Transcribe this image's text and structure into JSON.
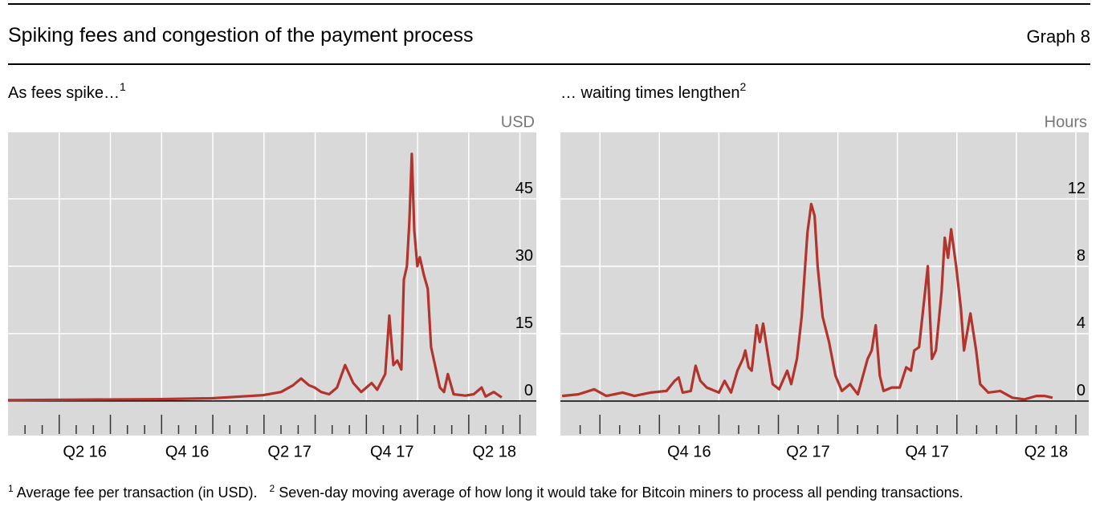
{
  "header": {
    "title": "Spiking fees and congestion of the payment process",
    "graph": "Graph 8"
  },
  "chart_data": [
    {
      "type": "line",
      "title": "As fees spike…",
      "title_note": "1",
      "ylabel": "USD",
      "color": "#b2342c",
      "xlim": [
        2016.0,
        2018.58
      ],
      "ylim": [
        -7.7,
        59.8
      ],
      "yticks": [
        0,
        15,
        30,
        45
      ],
      "grid": true,
      "xticks": [
        {
          "value": 2016.375,
          "label": "Q2 16"
        },
        {
          "value": 2016.875,
          "label": "Q4 16"
        },
        {
          "value": 2017.375,
          "label": "Q2 17"
        },
        {
          "value": 2017.875,
          "label": "Q4 17"
        },
        {
          "value": 2018.375,
          "label": "Q2 18"
        }
      ],
      "xgrid": [
        2016.25,
        2016.5,
        2016.75,
        2017.0,
        2017.25,
        2017.5,
        2017.75,
        2018.0,
        2018.25,
        2018.5
      ],
      "xminor": [
        2016.083,
        2016.167,
        2016.333,
        2016.417,
        2016.583,
        2016.667,
        2016.833,
        2016.917,
        2017.083,
        2017.167,
        2017.333,
        2017.417,
        2017.583,
        2017.667,
        2017.833,
        2017.917,
        2018.083,
        2018.167,
        2018.333,
        2018.417
      ],
      "x": [
        2016.0,
        2016.353,
        2016.745,
        2016.996,
        2017.137,
        2017.247,
        2017.333,
        2017.392,
        2017.431,
        2017.47,
        2017.497,
        2017.529,
        2017.568,
        2017.607,
        2017.646,
        2017.686,
        2017.725,
        2017.776,
        2017.803,
        2017.842,
        2017.862,
        2017.882,
        2017.901,
        2017.921,
        2017.933,
        2017.948,
        2017.96,
        2017.972,
        2017.984,
        2017.999,
        2018.011,
        2018.031,
        2018.05,
        2018.066,
        2018.085,
        2018.109,
        2018.129,
        2018.148,
        2018.176,
        2018.234,
        2018.274,
        2018.313,
        2018.332,
        2018.372,
        2018.411
      ],
      "values": [
        0.2,
        0.3,
        0.4,
        0.6,
        1,
        1.3,
        2,
        3.5,
        5,
        3.5,
        3,
        2,
        1.5,
        3,
        8,
        4,
        2,
        4,
        2.5,
        6,
        19,
        8,
        9,
        7,
        27,
        30,
        40,
        55,
        38,
        30,
        32,
        28,
        25,
        12,
        8,
        3,
        2,
        6,
        1.5,
        1.2,
        1.5,
        3,
        1,
        2,
        0.8
      ]
    },
    {
      "type": "line",
      "title": "… waiting times lengthen",
      "title_note": "2",
      "ylabel": "Hours",
      "color": "#b2342c",
      "xlim": [
        2016.334,
        2018.554
      ],
      "ylim": [
        -2.05,
        15.95
      ],
      "yticks": [
        0,
        4,
        8,
        12
      ],
      "grid": true,
      "xticks": [
        {
          "value": 2016.875,
          "label": "Q4 16"
        },
        {
          "value": 2017.375,
          "label": "Q2 17"
        },
        {
          "value": 2017.875,
          "label": "Q4 17"
        },
        {
          "value": 2018.375,
          "label": "Q2 18"
        }
      ],
      "xgrid": [
        2016.5,
        2016.75,
        2017.0,
        2017.25,
        2017.5,
        2017.75,
        2018.0,
        2018.25,
        2018.5
      ],
      "xminor": [
        2016.417,
        2016.583,
        2016.667,
        2016.833,
        2016.917,
        2017.083,
        2017.167,
        2017.333,
        2017.417,
        2017.583,
        2017.667,
        2017.833,
        2017.917,
        2018.083,
        2018.167,
        2018.333,
        2018.417
      ],
      "x": [
        2016.341,
        2016.409,
        2016.476,
        2016.527,
        2016.595,
        2016.645,
        2016.713,
        2016.78,
        2016.814,
        2016.831,
        2016.848,
        2016.882,
        2016.902,
        2016.922,
        2016.949,
        2017.0,
        2017.024,
        2017.051,
        2017.078,
        2017.101,
        2017.111,
        2017.125,
        2017.138,
        2017.159,
        2017.172,
        2017.186,
        2017.203,
        2017.226,
        2017.253,
        2017.287,
        2017.304,
        2017.328,
        2017.348,
        2017.372,
        2017.388,
        2017.402,
        2017.415,
        2017.436,
        2017.463,
        2017.49,
        2017.517,
        2017.551,
        2017.584,
        2017.625,
        2017.642,
        2017.659,
        2017.676,
        2017.692,
        2017.726,
        2017.76,
        2017.787,
        2017.807,
        2017.821,
        2017.841,
        2017.855,
        2017.878,
        2017.895,
        2017.912,
        2017.936,
        2017.949,
        2017.963,
        2017.976,
        2017.997,
        2018.017,
        2018.03,
        2018.057,
        2018.081,
        2018.098,
        2018.132,
        2018.182,
        2018.233,
        2018.284,
        2018.334,
        2018.368,
        2018.402
      ],
      "values": [
        0.3,
        0.4,
        0.7,
        0.3,
        0.5,
        0.3,
        0.5,
        0.6,
        1.2,
        1.4,
        0.5,
        0.6,
        2.1,
        1.2,
        0.8,
        0.5,
        1.2,
        0.5,
        1.8,
        2.5,
        3.0,
        2.0,
        1.8,
        4.5,
        3.5,
        4.6,
        3.0,
        1.0,
        0.7,
        1.8,
        1.0,
        2.5,
        5,
        10,
        11.7,
        11,
        8,
        5,
        3.5,
        1.5,
        0.6,
        1.0,
        0.4,
        2.5,
        3.0,
        4.5,
        1.5,
        0.6,
        0.8,
        0.8,
        2.0,
        1.8,
        3.0,
        3.2,
        5,
        8.0,
        2.5,
        3.0,
        6.5,
        9.7,
        8.5,
        10.2,
        8.0,
        5.5,
        3.0,
        5.2,
        3.0,
        1.0,
        0.5,
        0.6,
        0.2,
        0.1,
        0.3,
        0.3,
        0.2
      ]
    }
  ],
  "footnotes": [
    {
      "marker": "1",
      "text": "Average fee per transaction (in USD)."
    },
    {
      "marker": "2",
      "text": "Seven-day moving average of how long it would take for Bitcoin miners to process all pending transactions."
    }
  ]
}
